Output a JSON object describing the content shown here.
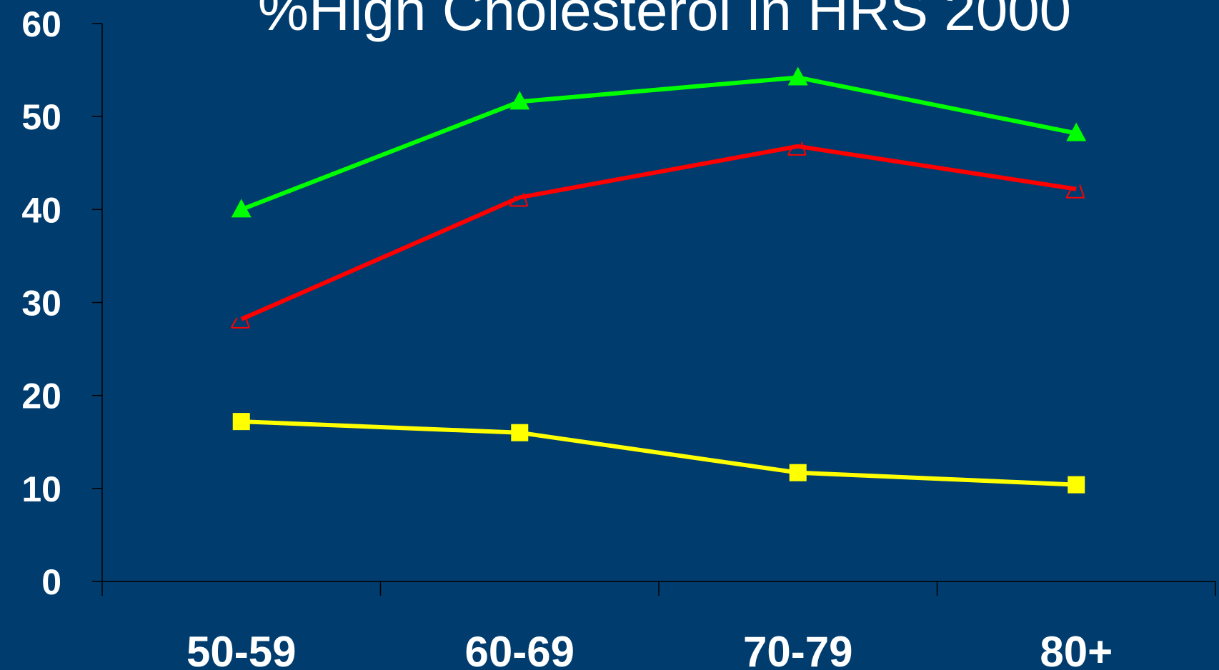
{
  "chart_data": {
    "type": "line",
    "title": "%High Cholesterol in HRS 2000",
    "categories": [
      "50-59",
      "60-69",
      "70-79",
      "80+"
    ],
    "ylim": [
      0,
      60
    ],
    "yticks": [
      0,
      10,
      20,
      30,
      40,
      50,
      60
    ],
    "grid": false,
    "series": [
      {
        "values": [
          40.0,
          51.6,
          54.2,
          48.2
        ],
        "color": "#00ff00",
        "marker": "triangle"
      },
      {
        "values": [
          28.2,
          41.3,
          46.8,
          42.2
        ],
        "color": "#ff0000",
        "marker": "check"
      },
      {
        "values": [
          17.2,
          16.0,
          11.7,
          10.4
        ],
        "color": "#ffff00",
        "marker": "square"
      }
    ]
  }
}
